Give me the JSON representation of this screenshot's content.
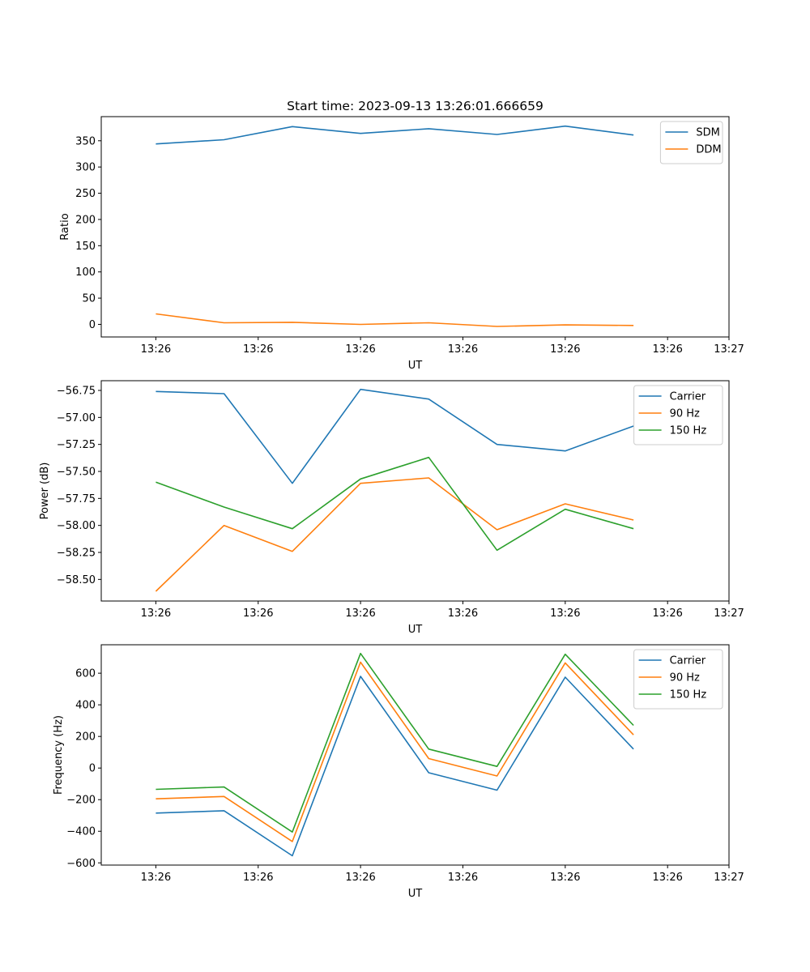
{
  "figure_title": "Start time: 2023-09-13 13:26:01.666659",
  "x_tick_labels": [
    "13:26",
    "13:26",
    "13:26",
    "13:26",
    "13:26",
    "13:26",
    "13:27"
  ],
  "chart_data": [
    {
      "type": "line",
      "title": "Start time: 2023-09-13 13:26:01.666659",
      "xlabel": "UT",
      "ylabel": "Ratio",
      "x": [
        1,
        2,
        3,
        4,
        5,
        6,
        7,
        8
      ],
      "xlim": [
        0.2,
        9.4
      ],
      "ylim": [
        -24,
        396
      ],
      "yticks": [
        0,
        50,
        100,
        150,
        200,
        250,
        300,
        350
      ],
      "ytick_labels": [
        "0",
        "50",
        "100",
        "150",
        "200",
        "250",
        "300",
        "350"
      ],
      "legend_position": "top-right",
      "series": [
        {
          "name": "SDM",
          "color": "#1f77b4",
          "values": [
            344,
            352,
            377,
            364,
            373,
            362,
            378,
            361
          ]
        },
        {
          "name": "DDM",
          "color": "#ff7f0e",
          "values": [
            20,
            3,
            4,
            0,
            3,
            -4,
            -1,
            -2
          ]
        }
      ]
    },
    {
      "type": "line",
      "title": "",
      "xlabel": "UT",
      "ylabel": "Power (dB)",
      "x": [
        1,
        2,
        3,
        4,
        5,
        6,
        7,
        8
      ],
      "xlim": [
        0.2,
        9.4
      ],
      "ylim": [
        -58.7,
        -56.66
      ],
      "yticks": [
        -58.5,
        -58.25,
        -58.0,
        -57.75,
        -57.5,
        -57.25,
        -57.0,
        -56.75
      ],
      "ytick_labels": [
        "−58.50",
        "−58.25",
        "−58.00",
        "−57.75",
        "−57.50",
        "−57.25",
        "−57.00",
        "−56.75"
      ],
      "legend_position": "top-right",
      "series": [
        {
          "name": "Carrier",
          "color": "#1f77b4",
          "values": [
            -56.76,
            -56.78,
            -57.61,
            -56.74,
            -56.83,
            -57.25,
            -57.31,
            -57.08
          ]
        },
        {
          "name": "90 Hz",
          "color": "#ff7f0e",
          "values": [
            -58.61,
            -58.0,
            -58.24,
            -57.61,
            -57.56,
            -58.04,
            -57.8,
            -57.95
          ]
        },
        {
          "name": "150 Hz",
          "color": "#2ca02c",
          "values": [
            -57.6,
            -57.83,
            -58.03,
            -57.57,
            -57.37,
            -58.23,
            -57.85,
            -58.03
          ]
        }
      ]
    },
    {
      "type": "line",
      "title": "",
      "xlabel": "UT",
      "ylabel": "Frequency (Hz)",
      "x": [
        1,
        2,
        3,
        4,
        5,
        6,
        7,
        8
      ],
      "xlim": [
        0.2,
        9.4
      ],
      "ylim": [
        -614,
        780
      ],
      "yticks": [
        -600,
        -400,
        -200,
        0,
        200,
        400,
        600
      ],
      "ytick_labels": [
        "−600",
        "−400",
        "−200",
        "0",
        "200",
        "400",
        "600"
      ],
      "legend_position": "top-right",
      "series": [
        {
          "name": "Carrier",
          "color": "#1f77b4",
          "values": [
            -285,
            -270,
            -555,
            580,
            -30,
            -140,
            575,
            120
          ]
        },
        {
          "name": "90 Hz",
          "color": "#ff7f0e",
          "values": [
            -195,
            -180,
            -465,
            670,
            60,
            -50,
            665,
            210
          ]
        },
        {
          "name": "150 Hz",
          "color": "#2ca02c",
          "values": [
            -135,
            -120,
            -405,
            725,
            120,
            10,
            720,
            270
          ]
        }
      ]
    }
  ]
}
